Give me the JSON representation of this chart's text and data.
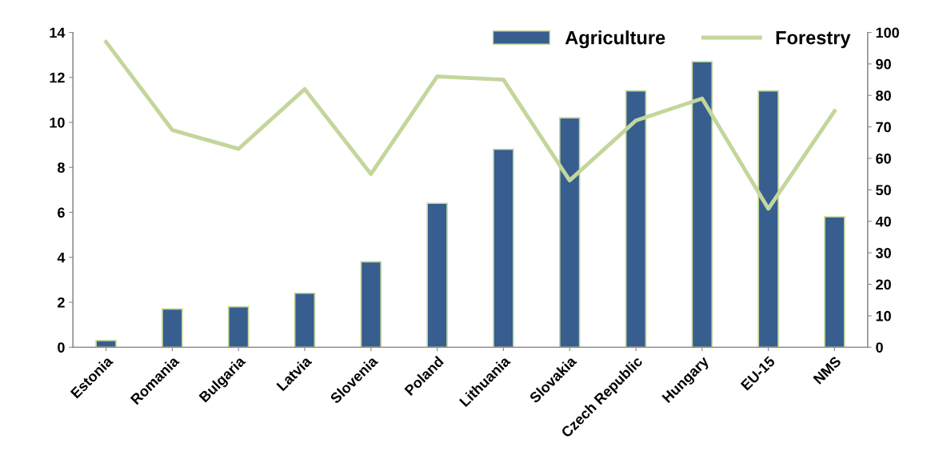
{
  "chart_data": {
    "type": "bar",
    "categories": [
      "Estonia",
      "Romania",
      "Bulgaria",
      "Latvia",
      "Slovenia",
      "Poland",
      "Lithuania",
      "Slovakia",
      "Czech Republic",
      "Hungary",
      "EU-15",
      "NMS"
    ],
    "series": [
      {
        "name": "Agriculture",
        "color": "#375e8f",
        "values": [
          0.3,
          1.7,
          1.8,
          2.4,
          3.8,
          6.4,
          8.8,
          10.2,
          11.4,
          12.7,
          11.4,
          5.8
        ]
      },
      {
        "name": "Forestry",
        "type": "line",
        "axis": "y2",
        "color": "#c3d69b",
        "values": [
          97,
          69,
          63,
          82,
          55,
          86,
          85,
          53,
          72,
          79,
          44,
          75
        ]
      }
    ],
    "ylim": [
      0,
      14
    ],
    "yticks": [
      0,
      2,
      4,
      6,
      8,
      10,
      12,
      14
    ],
    "y2lim": [
      0,
      100
    ],
    "y2ticks": [
      0,
      10,
      20,
      30,
      40,
      50,
      60,
      70,
      80,
      90,
      100
    ],
    "grid": false,
    "legend": "top right",
    "marker": "none",
    "line_style": "solid"
  }
}
